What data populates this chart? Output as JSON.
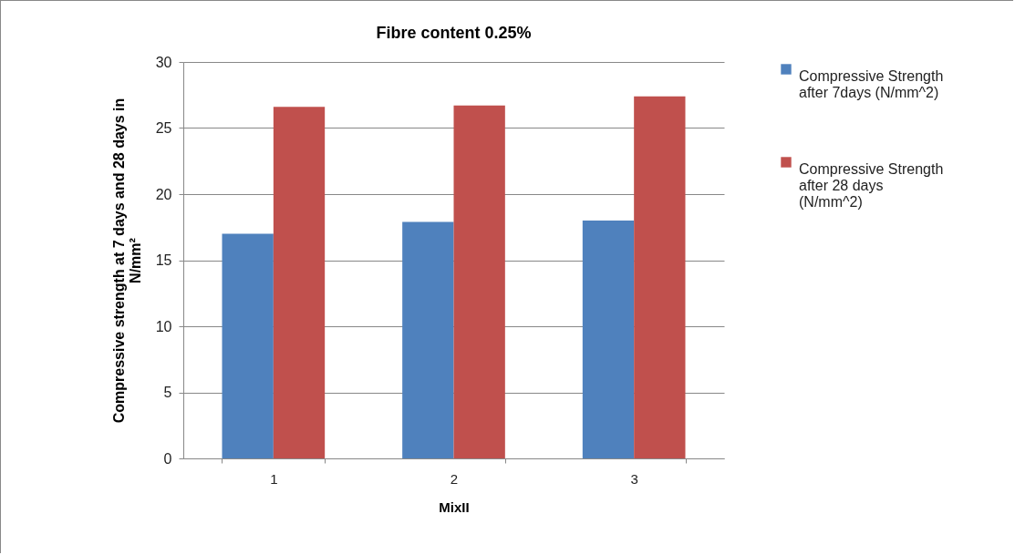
{
  "chart_data": {
    "type": "bar",
    "title": "Fibre content 0.25%",
    "xlabel": "MixII",
    "ylabel": "Compressive strength at 7 days and 28  days in N/mm²",
    "categories": [
      "1",
      "2",
      "3"
    ],
    "series": [
      {
        "name": "Compressive Strength after 7days (N/mm^2)",
        "color": "#4f81bd",
        "values": [
          17.0,
          17.9,
          18.0
        ]
      },
      {
        "name": "Compressive Strength after 28 days (N/mm^2)",
        "color": "#c0504d",
        "values": [
          26.6,
          26.7,
          27.4
        ]
      }
    ],
    "ylim": [
      0,
      30
    ],
    "yticks": [
      0,
      5,
      10,
      15,
      20,
      25,
      30
    ],
    "grid": "y",
    "legend": "right"
  }
}
